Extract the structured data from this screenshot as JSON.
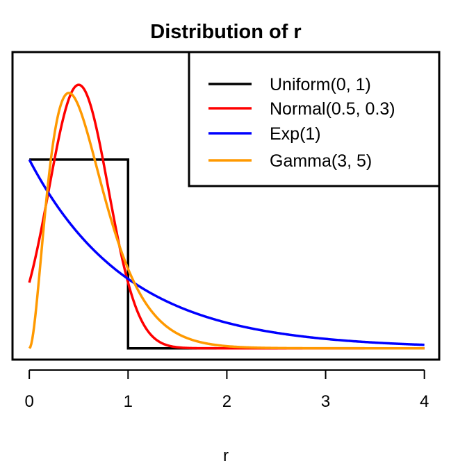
{
  "chart_data": {
    "type": "line",
    "title": "Distribution of r",
    "xlabel": "r",
    "ylabel": "",
    "xlim": [
      -0.17,
      4.15
    ],
    "ylim": [
      -0.06,
      1.57
    ],
    "x_ticks": [
      0,
      1,
      2,
      3,
      4
    ],
    "x_tick_labels": [
      "0",
      "1",
      "2",
      "3",
      "4"
    ],
    "y_axis_shown": false,
    "grid": false,
    "legend_position": "top-right",
    "x_range_plotted": [
      0,
      4
    ],
    "series": [
      {
        "name": "Uniform(0, 1)",
        "color": "#000000",
        "dist": "uniform",
        "params": {
          "min": 0,
          "max": 1
        }
      },
      {
        "name": "Normal(0.5, 0.3)",
        "color": "#ff0000",
        "dist": "normal_truncated_at_0",
        "params": {
          "mean": 0.5,
          "sd": 0.3
        }
      },
      {
        "name": "Exp(1)",
        "color": "#0000ff",
        "dist": "exponential",
        "params": {
          "rate": 1
        }
      },
      {
        "name": "Gamma(3, 5)",
        "color": "#ff9900",
        "dist": "gamma",
        "params": {
          "shape": 3,
          "rate": 5
        }
      }
    ]
  }
}
